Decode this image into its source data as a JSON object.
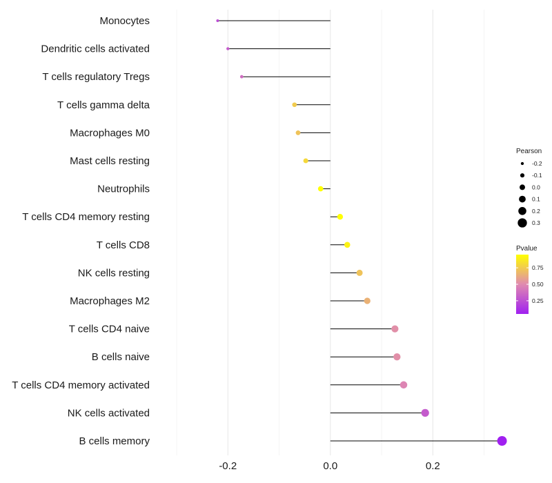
{
  "chart_data": {
    "type": "lollipop",
    "categories": [
      "Monocytes",
      "Dendritic cells activated",
      "T cells regulatory  Tregs",
      "T cells gamma delta",
      "Macrophages M0",
      "Mast cells resting",
      "Neutrophils",
      "T cells CD4 memory resting",
      "T cells CD8",
      "NK cells resting",
      "Macrophages M2",
      "T cells CD4 naive",
      "B cells naive",
      "T cells CD4 memory activated",
      "NK cells activated",
      "B cells memory"
    ],
    "values": [
      -0.22,
      -0.2,
      -0.173,
      -0.07,
      -0.063,
      -0.048,
      -0.019,
      0.019,
      0.033,
      0.057,
      0.072,
      0.126,
      0.13,
      0.143,
      0.185,
      0.335
    ],
    "pvalues": [
      0.25,
      0.3,
      0.38,
      0.75,
      0.72,
      0.8,
      0.95,
      0.95,
      0.9,
      0.72,
      0.65,
      0.52,
      0.52,
      0.48,
      0.3,
      0.05
    ],
    "xlim": [
      -0.335,
      0.345
    ],
    "xticks": [
      -0.2,
      0.0,
      0.2
    ],
    "xtick_labels": [
      "-0.2",
      "0.0",
      "0.2"
    ],
    "minor_grid": [
      -0.3,
      -0.1,
      0.1,
      0.3
    ],
    "size_legend": {
      "title": "Pearson",
      "values": [
        -0.2,
        -0.1,
        0.0,
        0.1,
        0.2,
        0.3
      ],
      "labels": [
        "-0.2",
        "-0.1",
        "0.0",
        "0.1",
        "0.2",
        "0.3"
      ]
    },
    "color_legend": {
      "title": "Pvalue",
      "ticks": [
        0.75,
        0.5,
        0.25
      ],
      "labels": [
        "0.75",
        "0.50",
        "0.25"
      ],
      "range": [
        0.05,
        0.95
      ],
      "low_color": "#a020f0",
      "mid_color": "#e08ab0",
      "high_color": "#ffff00"
    },
    "legend_position": "right"
  }
}
